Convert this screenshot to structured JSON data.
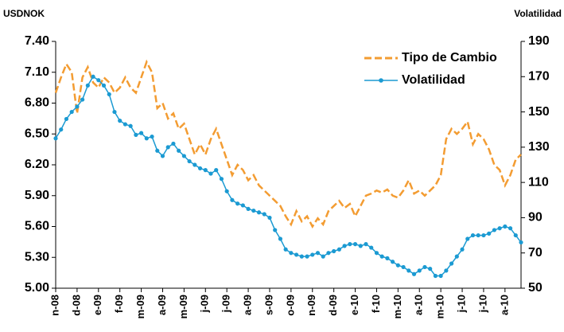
{
  "chart_data": {
    "type": "line",
    "y_label": "USDNOK",
    "y2_label": "Volatilidad",
    "categories": [
      "n-08",
      null,
      null,
      null,
      "d-08",
      null,
      null,
      null,
      "e-09",
      null,
      null,
      null,
      "f-09",
      null,
      null,
      null,
      "m-09",
      null,
      null,
      null,
      "a-09",
      null,
      null,
      null,
      "m-09",
      null,
      null,
      null,
      "j-09",
      null,
      null,
      null,
      "j-09",
      null,
      null,
      null,
      "a-09",
      null,
      null,
      null,
      "s-09",
      null,
      null,
      null,
      "o-09",
      null,
      null,
      null,
      "n-09",
      null,
      null,
      null,
      "d-09",
      null,
      null,
      null,
      "e-10",
      null,
      null,
      null,
      "f-10",
      null,
      null,
      null,
      "m-10",
      null,
      null,
      null,
      "a-10",
      null,
      null,
      null,
      "m-10",
      null,
      null,
      null,
      "j-10",
      null,
      null,
      null,
      "j-10",
      null,
      null,
      null,
      "a-10",
      null,
      null,
      null
    ],
    "series": [
      {
        "name": "Tipo de Cambio",
        "color": "#f39c32",
        "style": "dashed",
        "values": [
          6.9,
          7.05,
          7.18,
          7.1,
          6.7,
          7.05,
          7.15,
          7.0,
          6.95,
          7.05,
          7.0,
          6.9,
          6.95,
          7.05,
          6.95,
          6.9,
          7.05,
          7.2,
          7.1,
          6.75,
          6.8,
          6.65,
          6.7,
          6.55,
          6.6,
          6.45,
          6.3,
          6.4,
          6.3,
          6.45,
          6.55,
          6.4,
          6.25,
          6.1,
          6.2,
          6.15,
          6.05,
          6.1,
          6.0,
          5.95,
          5.9,
          5.85,
          5.8,
          5.7,
          5.62,
          5.75,
          5.65,
          5.7,
          5.6,
          5.68,
          5.62,
          5.75,
          5.8,
          5.85,
          5.78,
          5.82,
          5.7,
          5.8,
          5.9,
          5.92,
          5.95,
          5.93,
          5.96,
          5.9,
          5.88,
          5.95,
          6.05,
          5.92,
          5.95,
          5.9,
          5.95,
          6.0,
          6.1,
          6.45,
          6.55,
          6.5,
          6.55,
          6.62,
          6.4,
          6.5,
          6.45,
          6.35,
          6.2,
          6.15,
          6.0,
          6.1,
          6.25,
          6.3
        ]
      },
      {
        "name": "Volatilidad",
        "color": "#1b9ad2",
        "style": "markers",
        "axis": "y2",
        "values": [
          135,
          140,
          146,
          150,
          153,
          157,
          165,
          170,
          168,
          165,
          160,
          150,
          145,
          143,
          142,
          137,
          138,
          135,
          136,
          128,
          125,
          130,
          132,
          128,
          125,
          122,
          120,
          118,
          117,
          115,
          117,
          112,
          105,
          100,
          98,
          97,
          95,
          94,
          93,
          92,
          90,
          83,
          78,
          72,
          70,
          69,
          68,
          68,
          69,
          70,
          68,
          70,
          71,
          72,
          74,
          75,
          75,
          74,
          75,
          73,
          70,
          68,
          67,
          65,
          63,
          62,
          60,
          58,
          60,
          62,
          61,
          57,
          57,
          60,
          64,
          68,
          72,
          78,
          80,
          80,
          80,
          81,
          83,
          84,
          85,
          84,
          80,
          76
        ]
      }
    ],
    "ylim": [
      5.0,
      7.4
    ],
    "yticks": [
      {
        "value": 5.0,
        "label": "5.00"
      },
      {
        "value": 5.3,
        "label": "5.30"
      },
      {
        "value": 5.6,
        "label": "5.60"
      },
      {
        "value": 5.9,
        "label": "5.90"
      },
      {
        "value": 6.2,
        "label": "6.20"
      },
      {
        "value": 6.5,
        "label": "6.50"
      },
      {
        "value": 6.8,
        "label": "6.80"
      },
      {
        "value": 7.1,
        "label": "7.10"
      },
      {
        "value": 7.4,
        "label": "7.40"
      }
    ],
    "y2lim": [
      50,
      190
    ],
    "y2ticks": [
      50,
      70,
      90,
      110,
      130,
      150,
      170,
      190
    ],
    "legend": "upper right",
    "grid": false
  }
}
